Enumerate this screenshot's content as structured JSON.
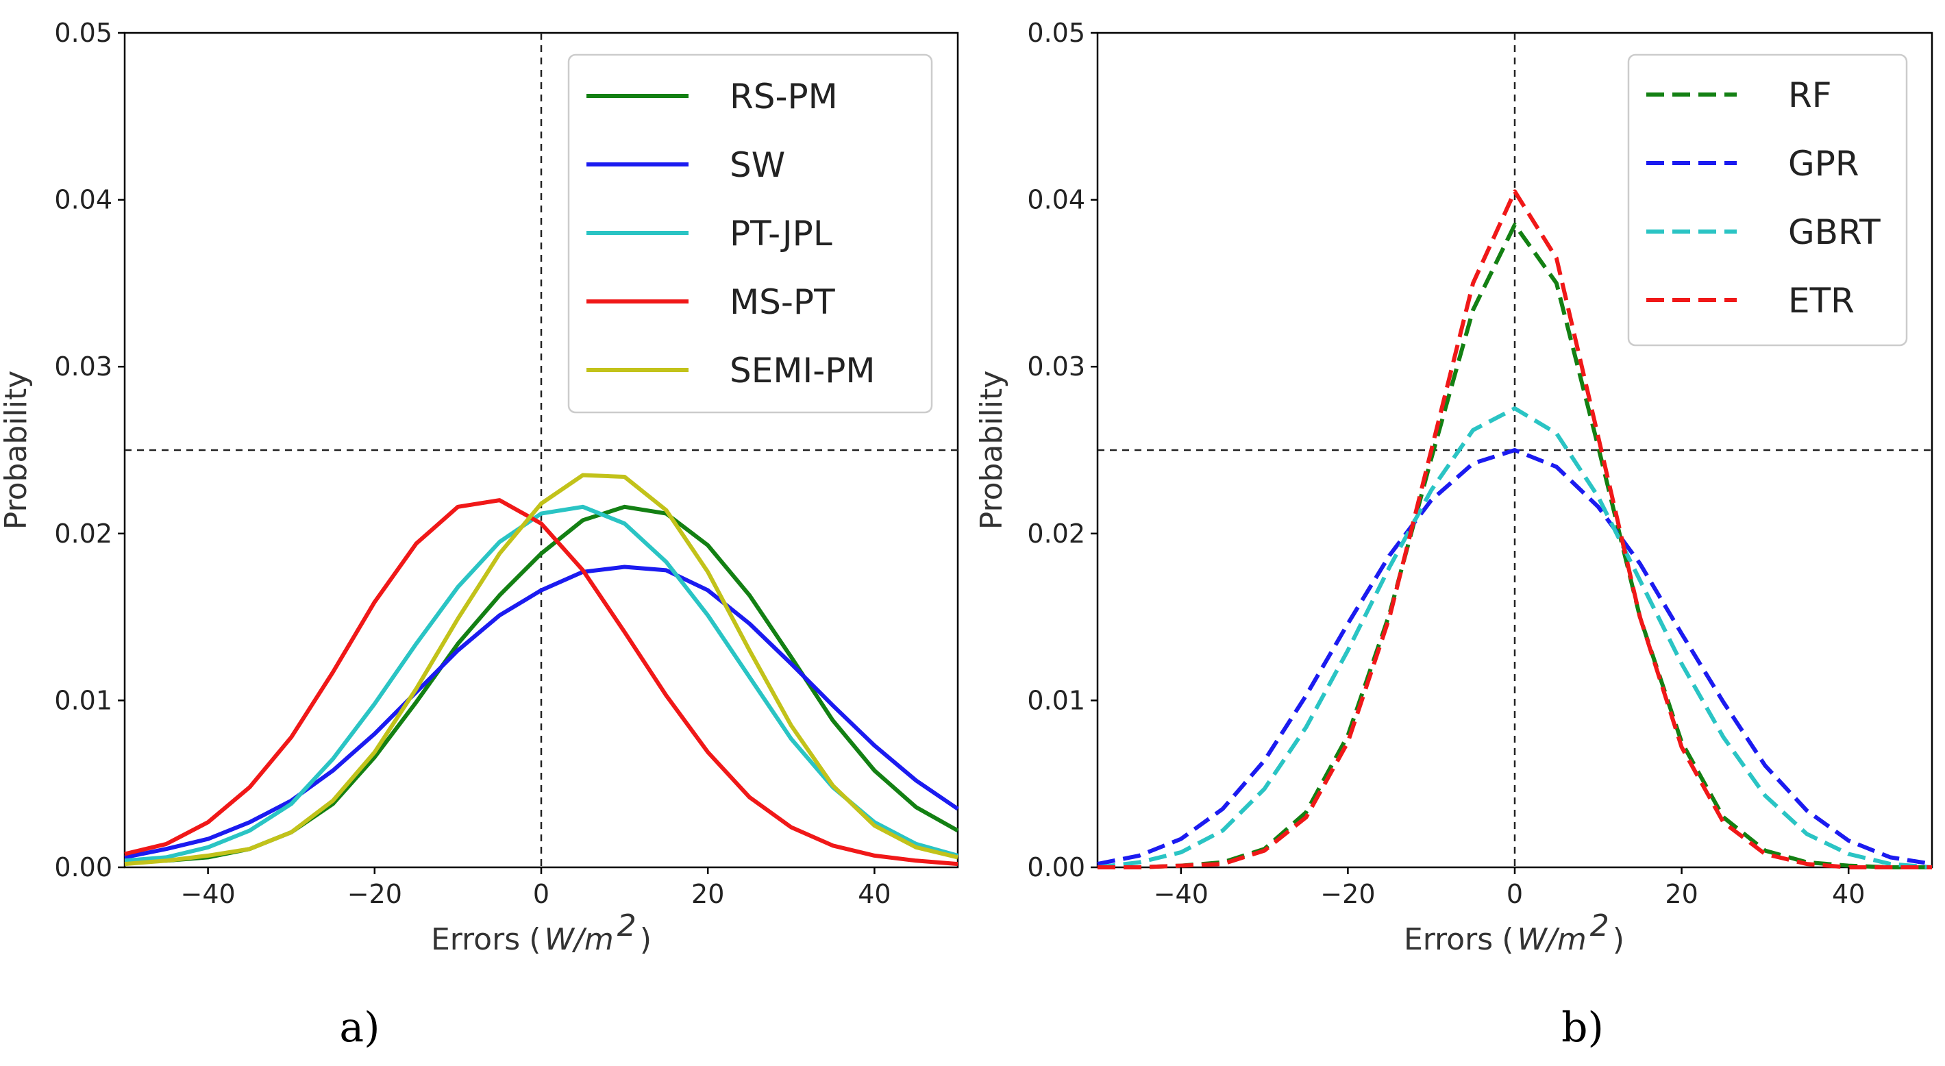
{
  "chart_data": [
    {
      "type": "line",
      "panel_label": "a)",
      "xlabel": "Errors",
      "xlabel_unit_main": "W/m",
      "xlabel_unit_exp": "2",
      "ylabel": "Probability",
      "xlim": [
        -50,
        50
      ],
      "ylim": [
        0,
        0.05
      ],
      "xticks": [
        -40,
        -20,
        0,
        20,
        40
      ],
      "xtick_labels": [
        "−40",
        "−20",
        "0",
        "20",
        "40"
      ],
      "yticks": [
        0,
        0.01,
        0.02,
        0.03,
        0.04,
        0.05
      ],
      "ytick_labels": [
        "0.00",
        "0.01",
        "0.02",
        "0.03",
        "0.04",
        "0.05"
      ],
      "reference_lines": {
        "x": 0,
        "y": 0.025
      },
      "legend_position": "top-right",
      "series": [
        {
          "name": "RS-PM",
          "color": "#138013",
          "dash": "solid",
          "x": [
            -50,
            -45,
            -40,
            -35,
            -30,
            -25,
            -20,
            -15,
            -10,
            -5,
            0,
            5,
            10,
            15,
            20,
            25,
            30,
            35,
            40,
            45,
            50
          ],
          "y": [
            0.0003,
            0.0004,
            0.0006,
            0.0011,
            0.0021,
            0.0038,
            0.0066,
            0.0099,
            0.0134,
            0.0163,
            0.0188,
            0.0208,
            0.0216,
            0.0212,
            0.0193,
            0.0163,
            0.0126,
            0.0088,
            0.0058,
            0.0036,
            0.0022
          ]
        },
        {
          "name": "SW",
          "color": "#1b1bf0",
          "dash": "solid",
          "x": [
            -50,
            -45,
            -40,
            -35,
            -30,
            -25,
            -20,
            -15,
            -10,
            -5,
            0,
            5,
            10,
            15,
            20,
            25,
            30,
            35,
            40,
            45,
            50
          ],
          "y": [
            0.0006,
            0.0011,
            0.0017,
            0.0027,
            0.004,
            0.0058,
            0.008,
            0.0105,
            0.013,
            0.0151,
            0.0166,
            0.0177,
            0.018,
            0.0178,
            0.0166,
            0.0146,
            0.0122,
            0.0097,
            0.0073,
            0.0052,
            0.0035
          ]
        },
        {
          "name": "PT-JPL",
          "color": "#2ac4c4",
          "dash": "solid",
          "x": [
            -50,
            -45,
            -40,
            -35,
            -30,
            -25,
            -20,
            -15,
            -10,
            -5,
            0,
            5,
            10,
            15,
            20,
            25,
            30,
            35,
            40,
            45,
            50
          ],
          "y": [
            0.0004,
            0.0006,
            0.0012,
            0.0022,
            0.0038,
            0.0065,
            0.0098,
            0.0134,
            0.0168,
            0.0195,
            0.0212,
            0.0216,
            0.0206,
            0.0183,
            0.0151,
            0.0114,
            0.0077,
            0.0048,
            0.0027,
            0.0014,
            0.0007
          ]
        },
        {
          "name": "MS-PT",
          "color": "#f01818",
          "dash": "solid",
          "x": [
            -50,
            -45,
            -40,
            -35,
            -30,
            -25,
            -20,
            -15,
            -10,
            -5,
            0,
            5,
            10,
            15,
            20,
            25,
            30,
            35,
            40,
            45,
            50
          ],
          "y": [
            0.0008,
            0.0014,
            0.0027,
            0.0048,
            0.0078,
            0.0117,
            0.0159,
            0.0194,
            0.0216,
            0.022,
            0.0206,
            0.0178,
            0.0141,
            0.0103,
            0.0069,
            0.0042,
            0.0024,
            0.0013,
            0.0007,
            0.0004,
            0.0002
          ]
        },
        {
          "name": "SEMI-PM",
          "color": "#c2c21a",
          "dash": "solid",
          "x": [
            -50,
            -45,
            -40,
            -35,
            -30,
            -25,
            -20,
            -15,
            -10,
            -5,
            0,
            5,
            10,
            15,
            20,
            25,
            30,
            35,
            40,
            45,
            50
          ],
          "y": [
            0.0002,
            0.0004,
            0.0007,
            0.0011,
            0.0021,
            0.004,
            0.0069,
            0.0107,
            0.0149,
            0.0188,
            0.0218,
            0.0235,
            0.0234,
            0.0214,
            0.0177,
            0.013,
            0.0085,
            0.0049,
            0.0025,
            0.0012,
            0.0006
          ]
        }
      ]
    },
    {
      "type": "line",
      "panel_label": "b)",
      "xlabel": "Errors",
      "xlabel_unit_main": "W/m",
      "xlabel_unit_exp": "2",
      "ylabel": "Probability",
      "xlim": [
        -50,
        50
      ],
      "ylim": [
        0,
        0.05
      ],
      "xticks": [
        -40,
        -20,
        0,
        20,
        40
      ],
      "xtick_labels": [
        "−40",
        "−20",
        "0",
        "20",
        "40"
      ],
      "yticks": [
        0,
        0.01,
        0.02,
        0.03,
        0.04,
        0.05
      ],
      "ytick_labels": [
        "0.00",
        "0.01",
        "0.02",
        "0.03",
        "0.04",
        "0.05"
      ],
      "reference_lines": {
        "x": 0,
        "y": 0.025
      },
      "legend_position": "top-right",
      "series": [
        {
          "name": "RF",
          "color": "#138013",
          "dash": "dashed",
          "x": [
            -50,
            -45,
            -40,
            -35,
            -30,
            -25,
            -20,
            -15,
            -10,
            -5,
            0,
            5,
            10,
            15,
            20,
            25,
            30,
            35,
            40,
            45,
            50
          ],
          "y": [
            0.0,
            0.0,
            0.0001,
            0.0003,
            0.0011,
            0.0033,
            0.0079,
            0.0152,
            0.0245,
            0.0334,
            0.0385,
            0.035,
            0.0252,
            0.015,
            0.0075,
            0.003,
            0.001,
            0.0003,
            0.0001,
            0.0,
            0.0
          ]
        },
        {
          "name": "GPR",
          "color": "#1b1bf0",
          "dash": "dashed",
          "x": [
            -50,
            -45,
            -40,
            -35,
            -30,
            -25,
            -20,
            -15,
            -10,
            -5,
            0,
            5,
            10,
            15,
            20,
            25,
            30,
            35,
            40,
            45,
            50
          ],
          "y": [
            0.0002,
            0.0007,
            0.0017,
            0.0035,
            0.0064,
            0.0103,
            0.0146,
            0.0187,
            0.022,
            0.0242,
            0.025,
            0.024,
            0.0216,
            0.0182,
            0.014,
            0.0099,
            0.0061,
            0.0034,
            0.0016,
            0.0006,
            0.0002
          ]
        },
        {
          "name": "GBRT",
          "color": "#2ac4c4",
          "dash": "dashed",
          "x": [
            -50,
            -45,
            -40,
            -35,
            -30,
            -25,
            -20,
            -15,
            -10,
            -5,
            0,
            5,
            10,
            15,
            20,
            25,
            30,
            35,
            40,
            45,
            50
          ],
          "y": [
            0.0,
            0.0003,
            0.0009,
            0.0022,
            0.0047,
            0.0084,
            0.013,
            0.018,
            0.0226,
            0.0262,
            0.0275,
            0.026,
            0.0222,
            0.0172,
            0.0122,
            0.0078,
            0.0043,
            0.002,
            0.0008,
            0.0002,
            0.0
          ]
        },
        {
          "name": "ETR",
          "color": "#f01818",
          "dash": "dashed",
          "x": [
            -50,
            -45,
            -40,
            -35,
            -30,
            -25,
            -20,
            -15,
            -10,
            -5,
            0,
            5,
            10,
            15,
            20,
            25,
            30,
            35,
            40,
            45,
            50
          ],
          "y": [
            0.0,
            0.0,
            0.0001,
            0.0002,
            0.001,
            0.003,
            0.0075,
            0.015,
            0.025,
            0.035,
            0.0405,
            0.0365,
            0.0258,
            0.015,
            0.0072,
            0.0027,
            0.0008,
            0.0002,
            0.0,
            0.0,
            0.0
          ]
        }
      ]
    }
  ]
}
